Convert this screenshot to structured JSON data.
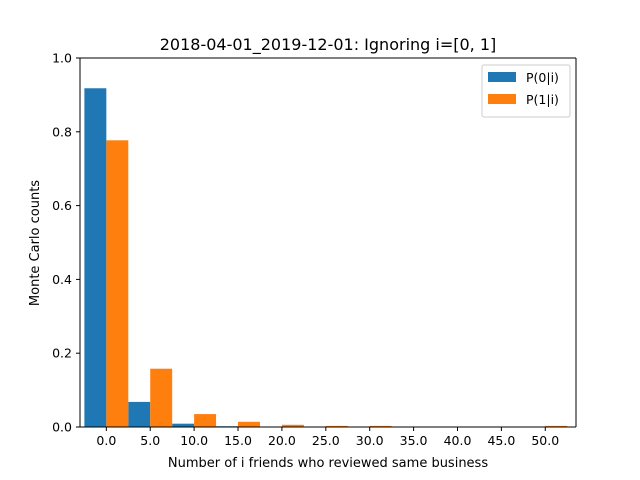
{
  "chart_data": {
    "type": "bar",
    "title": "2018-04-01_2019-12-01: Ignoring i=[0, 1]",
    "xlabel": "Number of i friends who reviewed same business",
    "ylabel": "Monte Carlo counts",
    "categories": [
      "0.0",
      "5.0",
      "10.0",
      "15.0",
      "20.0",
      "25.0",
      "30.0",
      "35.0",
      "40.0",
      "45.0",
      "50.0"
    ],
    "x_values": [
      0,
      5,
      10,
      15,
      20,
      25,
      30,
      35,
      40,
      45,
      50
    ],
    "xlim": [
      -3.0,
      53.5
    ],
    "ylim": [
      0,
      1.0
    ],
    "yticks": [
      "0.0",
      "0.2",
      "0.4",
      "0.6",
      "0.8",
      "1.0"
    ],
    "ytick_values": [
      0,
      0.2,
      0.4,
      0.6,
      0.8,
      1.0
    ],
    "grid": false,
    "legend_position": "top-right",
    "series": [
      {
        "name": "P(0|i)",
        "color": "#1f77b4",
        "values": [
          0.918,
          0.068,
          0.009,
          0.002,
          0.001,
          0.0,
          0.0,
          0.0,
          0.0,
          0.0,
          0.0
        ]
      },
      {
        "name": "P(1|i)",
        "color": "#ff7f0e",
        "values": [
          0.777,
          0.158,
          0.035,
          0.014,
          0.006,
          0.003,
          0.003,
          0.001,
          0.001,
          0.001,
          0.003
        ]
      }
    ]
  }
}
